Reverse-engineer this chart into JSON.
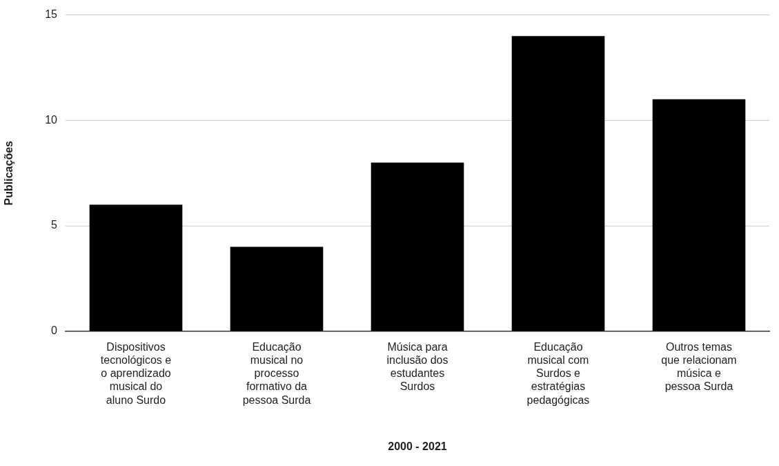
{
  "chart_data": {
    "type": "bar",
    "xlabel": "2000 - 2021",
    "ylabel": "Publicações",
    "categories": [
      "Dispositivos tecnológicos e o aprendizado musical do aluno Surdo",
      "Educação musical no processo formativo da pessoa Surda",
      "Música para inclusão dos estudantes Surdos",
      "Educação musical com Surdos e estratégias pedagógicas",
      "Outros temas que relacionam música e pessoa Surda"
    ],
    "values": [
      6,
      4,
      8,
      14,
      11
    ],
    "color": "#000000",
    "ylim": [
      0,
      15
    ],
    "yticks": [
      0,
      5,
      10,
      15
    ],
    "grid": "y",
    "legend": false
  }
}
